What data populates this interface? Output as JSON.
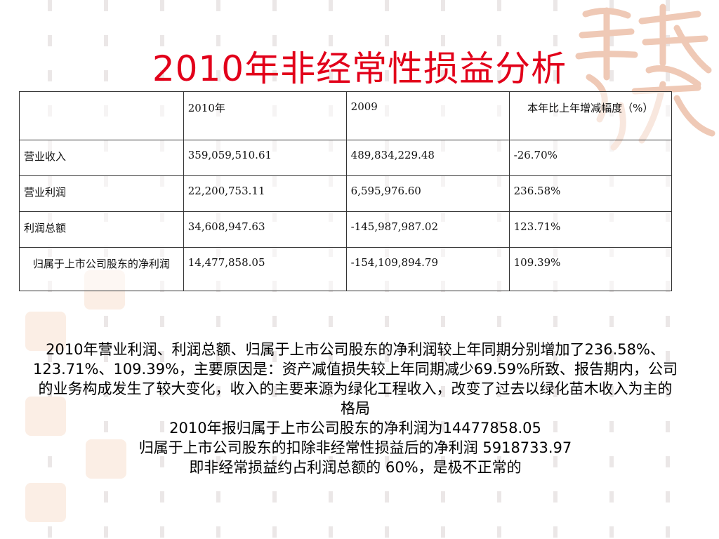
{
  "title": "2010年非经常性损益分析",
  "table": {
    "headers": [
      "",
      "2010年",
      "2009",
      "本年比上年增减幅度（%）"
    ],
    "rows": [
      [
        "营业收入",
        "359,059,510.61",
        "489,834,229.48",
        "-26.70%"
      ],
      [
        "营业利润",
        "22,200,753.11",
        "6,595,976.60",
        "236.58%"
      ],
      [
        "利润总额",
        "34,608,947.63",
        "-145,987,987.02",
        "123.71%"
      ],
      [
        "归属于上市公司股东的净利润",
        "14,477,858.05",
        "-154,109,894.79",
        "109.39%"
      ]
    ]
  },
  "paragraphs": [
    "2010年营业利润、利润总额、归属于上市公司股东的净利润较上年同期分别增加了236.58%、123.71%、109.39%，主要原因是：资产减值损失较上年同期减少69.59%所致、报告期内，公司的业务构成发生了较大变化，收入的主要来源为绿化工程收入，改变了过去以绿化苗木收入为主的 格局",
    "2010年报归属于上市公司股东的净利润为14477858.05",
    "归属于上市公司股东的扣除非经常性损益后的净利润 5918733.97",
    "即非经常损益约占利润总额的 60%，是极不正常的"
  ],
  "colors": {
    "title": "#e2001a",
    "seal": "#f0d2c2"
  }
}
